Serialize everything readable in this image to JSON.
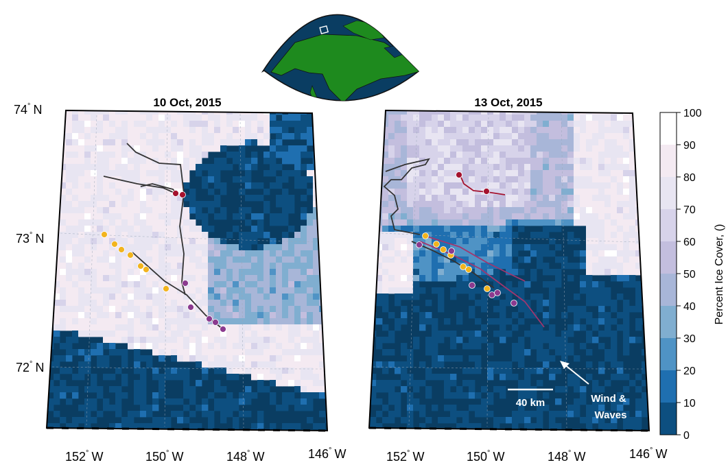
{
  "inset": {
    "name": "alaska-locator-inset"
  },
  "panels": [
    {
      "title": "10 Oct, 2015",
      "lat_labels": [
        {
          "deg": "74",
          "hemi": "N"
        },
        {
          "deg": "73",
          "hemi": "N"
        },
        {
          "deg": "72",
          "hemi": "N"
        }
      ],
      "lon_labels": [
        {
          "deg": "152",
          "hemi": "W"
        },
        {
          "deg": "150",
          "hemi": "W"
        },
        {
          "deg": "148",
          "hemi": "W"
        },
        {
          "deg": "146",
          "hemi": "W"
        }
      ]
    },
    {
      "title": "13 Oct, 2015",
      "lon_labels": [
        {
          "deg": "152",
          "hemi": "W"
        },
        {
          "deg": "150",
          "hemi": "W"
        },
        {
          "deg": "148",
          "hemi": "W"
        },
        {
          "deg": "146",
          "hemi": "W"
        }
      ],
      "scale_bar": "40 km",
      "annotation_line1": "Wind &",
      "annotation_line2": "Waves"
    }
  ],
  "colorbar": {
    "label": "Percent Ice Cover, ()",
    "ticks": [
      "100",
      "90",
      "80",
      "70",
      "60",
      "50",
      "40",
      "30",
      "20",
      "10",
      "0"
    ],
    "colors": [
      "#ffffff",
      "#f4eaf2",
      "#e8e5f2",
      "#d7d3ea",
      "#c3bede",
      "#a8b6d8",
      "#80aed0",
      "#4f93c5",
      "#1f6fb0",
      "#0d4f80",
      "#0a3d62"
    ]
  },
  "colors": {
    "water": "#0a3d62",
    "land": "#1e8a1e",
    "track": "#333333",
    "marker_yellow": "#f2b41e",
    "marker_purple": "#8b3a8f",
    "marker_red": "#a4122e"
  }
}
